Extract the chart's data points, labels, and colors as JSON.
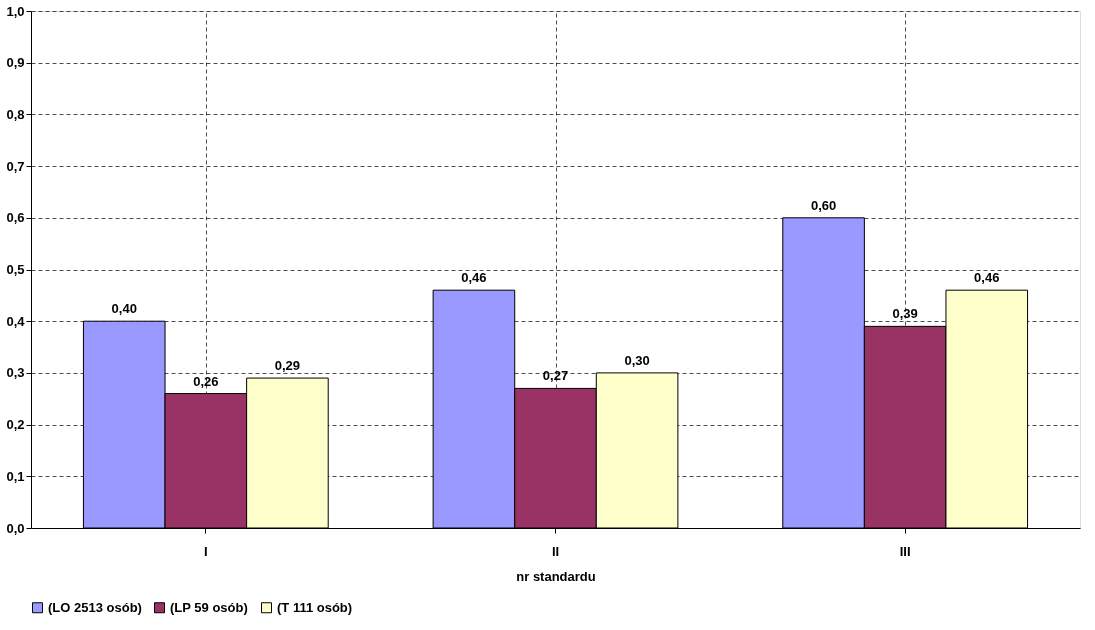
{
  "chart_data": {
    "type": "bar",
    "xlabel": "nr standardu",
    "categories": [
      "I",
      "II",
      "III"
    ],
    "series": [
      {
        "name": "(LO 2513 osób)",
        "color": "#9999ff",
        "values": [
          0.4,
          0.46,
          0.6
        ],
        "value_labels": [
          "0,40",
          "0,46",
          "0,60"
        ]
      },
      {
        "name": "(LP 59 osób)",
        "color": "#993366",
        "values": [
          0.26,
          0.27,
          0.39
        ],
        "value_labels": [
          "0,26",
          "0,27",
          "0,39"
        ]
      },
      {
        "name": "(T 111 osób)",
        "color": "#ffffcc",
        "values": [
          0.29,
          0.3,
          0.46
        ],
        "value_labels": [
          "0,29",
          "0,30",
          "0,46"
        ]
      }
    ],
    "ylim": [
      0,
      1
    ],
    "yticks": [
      {
        "value": 0,
        "label": "0,0"
      },
      {
        "value": 0.1,
        "label": "0,1"
      },
      {
        "value": 0.2,
        "label": "0,2"
      },
      {
        "value": 0.3,
        "label": "0,3"
      },
      {
        "value": 0.4,
        "label": "0,4"
      },
      {
        "value": 0.5,
        "label": "0,5"
      },
      {
        "value": 0.6,
        "label": "0,6"
      },
      {
        "value": 0.7,
        "label": "0,7"
      },
      {
        "value": 0.8,
        "label": "0,8"
      },
      {
        "value": 0.9,
        "label": "0,9"
      },
      {
        "value": 1,
        "label": "1,0"
      }
    ],
    "grid": true,
    "legend": "bottom"
  }
}
